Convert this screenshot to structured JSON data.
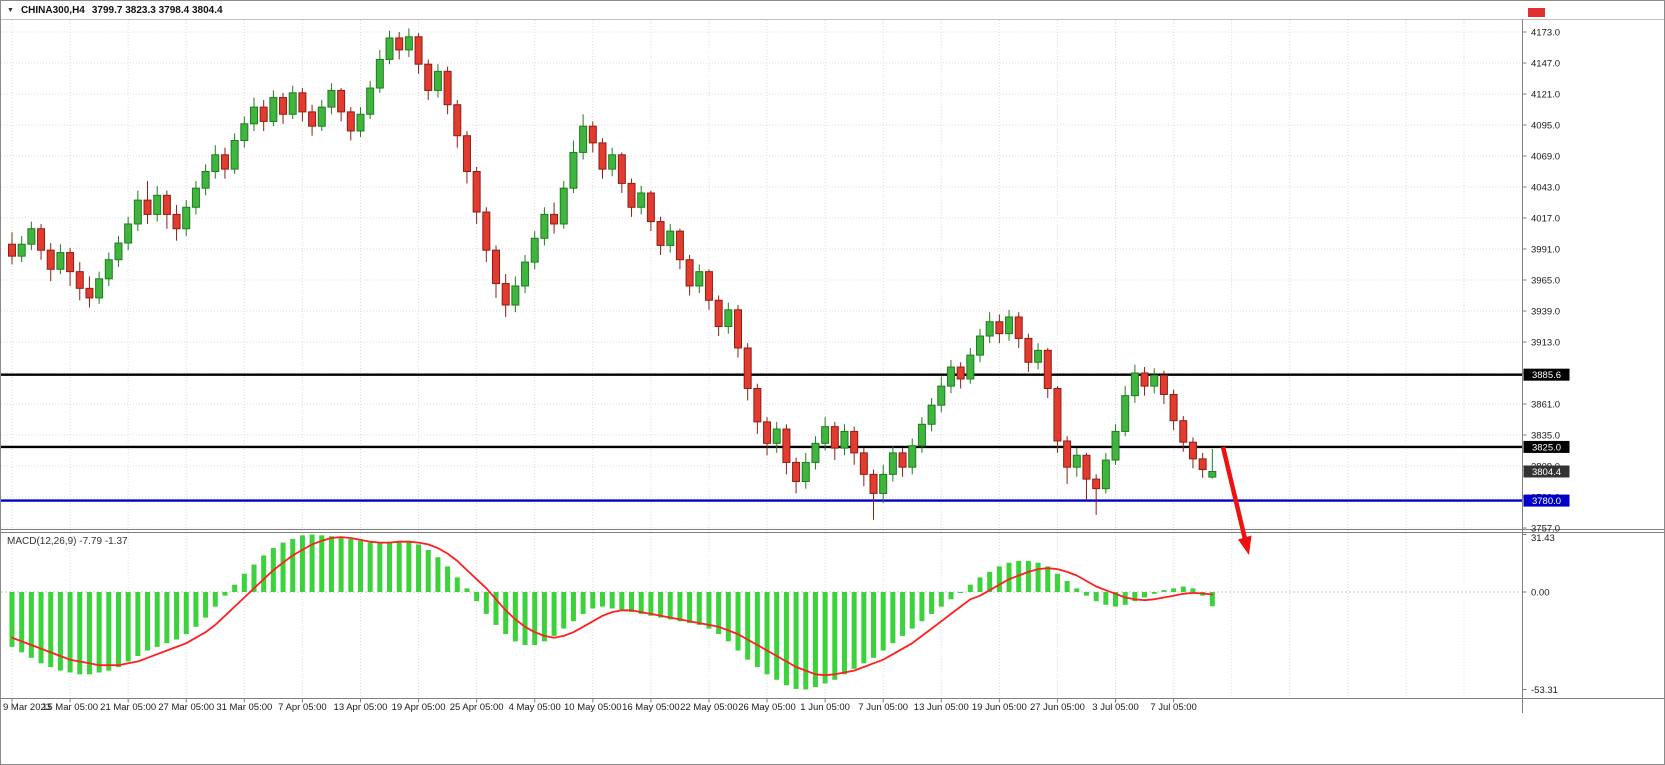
{
  "window": {
    "symbol_label": "CHINA300,H4",
    "ohlc_values": "3799.7 3823.3 3798.4 3804.4",
    "dropdown_icon": "▼"
  },
  "colors": {
    "background": "#ffffff",
    "grid": "#dcdcdc",
    "separator": "#808080",
    "axis_text": "#1a1a1a",
    "bull_fill": "#3fb53f",
    "bull_stroke": "#1e7d1e",
    "bear_fill": "#e23b30",
    "bear_stroke": "#8f1d14",
    "level_black": "#000000",
    "level_blue": "#0000c8",
    "badge_black": "#000000",
    "badge_blue": "#0000c8",
    "badge_current": "#333333",
    "macd_histogram": "#3bd23b",
    "macd_signal": "#ff1f1f",
    "arrow": "#ee1111",
    "alert_marker": "#e03030"
  },
  "chart_data": {
    "type": "candlestick_with_macd",
    "symbol": "CHINA300",
    "timeframe": "H4",
    "price_panel": {
      "y_ticks": [
        "4173.0",
        "4147.0",
        "4121.0",
        "4095.0",
        "4069.0",
        "4043.0",
        "4017.0",
        "3991.0",
        "3965.0",
        "3939.0",
        "3913.0",
        "3887.0",
        "3861.0",
        "3835.0",
        "3809.0",
        "3783.0",
        "3757.0"
      ],
      "levels": [
        {
          "value": 3885.6,
          "label": "3885.6",
          "color_key": "level_black",
          "badge_key": "badge_black"
        },
        {
          "value": 3825.0,
          "label": "3825.0",
          "color_key": "level_black",
          "badge_key": "badge_black"
        },
        {
          "value": 3780.0,
          "label": "3780.0",
          "color_key": "level_blue",
          "badge_key": "badge_blue"
        }
      ],
      "current_price": {
        "value": 3804.4,
        "label": "3804.4"
      }
    },
    "x_axis": {
      "candles_per_label": 6,
      "labels": [
        "9 Mar 2023",
        "15 Mar 05:00",
        "21 Mar 05:00",
        "27 Mar 05:00",
        "31 Mar 05:00",
        "7 Apr 05:00",
        "13 Apr 05:00",
        "19 Apr 05:00",
        "25 Apr 05:00",
        "4 May 05:00",
        "10 May 05:00",
        "16 May 05:00",
        "22 May 05:00",
        "26 May 05:00",
        "1 Jun 05:00",
        "7 Jun 05:00",
        "13 Jun 05:00",
        "19 Jun 05:00",
        "27 Jun 05:00",
        "3 Jul 05:00",
        "7 Jul 05:00"
      ]
    },
    "candles_format": "[open, high, low, close]",
    "candles": [
      [
        3995,
        4005,
        3978,
        3985
      ],
      [
        3985,
        4002,
        3980,
        3995
      ],
      [
        3995,
        4014,
        3990,
        4008
      ],
      [
        4008,
        4012,
        3982,
        3990
      ],
      [
        3990,
        3996,
        3964,
        3974
      ],
      [
        3974,
        3995,
        3970,
        3988
      ],
      [
        3988,
        3992,
        3960,
        3972
      ],
      [
        3972,
        3980,
        3948,
        3958
      ],
      [
        3958,
        3968,
        3942,
        3950
      ],
      [
        3950,
        3972,
        3945,
        3966
      ],
      [
        3966,
        3988,
        3960,
        3982
      ],
      [
        3982,
        4002,
        3976,
        3996
      ],
      [
        3996,
        4018,
        3990,
        4012
      ],
      [
        4012,
        4040,
        4006,
        4032
      ],
      [
        4032,
        4048,
        4012,
        4020
      ],
      [
        4020,
        4044,
        4014,
        4036
      ],
      [
        4036,
        4040,
        4008,
        4020
      ],
      [
        4020,
        4028,
        3998,
        4008
      ],
      [
        4008,
        4032,
        4002,
        4026
      ],
      [
        4026,
        4048,
        4020,
        4042
      ],
      [
        4042,
        4062,
        4036,
        4056
      ],
      [
        4056,
        4078,
        4050,
        4070
      ],
      [
        4070,
        4076,
        4050,
        4058
      ],
      [
        4058,
        4088,
        4054,
        4082
      ],
      [
        4082,
        4102,
        4076,
        4096
      ],
      [
        4096,
        4118,
        4090,
        4110
      ],
      [
        4110,
        4116,
        4090,
        4098
      ],
      [
        4098,
        4124,
        4094,
        4118
      ],
      [
        4118,
        4122,
        4096,
        4104
      ],
      [
        4104,
        4128,
        4100,
        4122
      ],
      [
        4122,
        4126,
        4098,
        4106
      ],
      [
        4106,
        4112,
        4086,
        4094
      ],
      [
        4094,
        4116,
        4090,
        4110
      ],
      [
        4110,
        4130,
        4104,
        4124
      ],
      [
        4124,
        4126,
        4098,
        4106
      ],
      [
        4106,
        4110,
        4082,
        4090
      ],
      [
        4090,
        4110,
        4085,
        4104
      ],
      [
        4104,
        4132,
        4100,
        4126
      ],
      [
        4126,
        4158,
        4122,
        4150
      ],
      [
        4150,
        4174,
        4146,
        4168
      ],
      [
        4168,
        4173,
        4150,
        4158
      ],
      [
        4158,
        4176,
        4152,
        4169
      ],
      [
        4169,
        4172,
        4138,
        4146
      ],
      [
        4146,
        4150,
        4116,
        4124
      ],
      [
        4124,
        4146,
        4118,
        4140
      ],
      [
        4140,
        4144,
        4104,
        4112
      ],
      [
        4112,
        4116,
        4076,
        4086
      ],
      [
        4086,
        4090,
        4046,
        4056
      ],
      [
        4056,
        4060,
        4012,
        4022
      ],
      [
        4022,
        4026,
        3980,
        3990
      ],
      [
        3990,
        3994,
        3950,
        3962
      ],
      [
        3962,
        3970,
        3934,
        3944
      ],
      [
        3944,
        3968,
        3938,
        3960
      ],
      [
        3960,
        3986,
        3954,
        3980
      ],
      [
        3980,
        4006,
        3974,
        4000
      ],
      [
        4000,
        4026,
        3994,
        4020
      ],
      [
        4020,
        4030,
        4004,
        4012
      ],
      [
        4012,
        4048,
        4008,
        4042
      ],
      [
        4042,
        4082,
        4038,
        4072
      ],
      [
        4072,
        4104,
        4066,
        4094
      ],
      [
        4094,
        4098,
        4072,
        4080
      ],
      [
        4080,
        4084,
        4050,
        4058
      ],
      [
        4058,
        4076,
        4052,
        4070
      ],
      [
        4070,
        4072,
        4038,
        4046
      ],
      [
        4046,
        4050,
        4018,
        4026
      ],
      [
        4026,
        4044,
        4020,
        4038
      ],
      [
        4038,
        4040,
        4006,
        4014
      ],
      [
        4014,
        4018,
        3986,
        3994
      ],
      [
        3994,
        4012,
        3988,
        4006
      ],
      [
        4006,
        4008,
        3974,
        3982
      ],
      [
        3982,
        3986,
        3952,
        3960
      ],
      [
        3960,
        3978,
        3954,
        3972
      ],
      [
        3972,
        3974,
        3940,
        3948
      ],
      [
        3948,
        3952,
        3918,
        3926
      ],
      [
        3926,
        3946,
        3920,
        3940
      ],
      [
        3940,
        3944,
        3900,
        3908
      ],
      [
        3908,
        3912,
        3864,
        3874
      ],
      [
        3874,
        3878,
        3836,
        3846
      ],
      [
        3846,
        3850,
        3818,
        3828
      ],
      [
        3828,
        3846,
        3820,
        3840
      ],
      [
        3840,
        3844,
        3802,
        3812
      ],
      [
        3812,
        3816,
        3786,
        3796
      ],
      [
        3796,
        3820,
        3790,
        3812
      ],
      [
        3812,
        3834,
        3806,
        3828
      ],
      [
        3828,
        3850,
        3822,
        3842
      ],
      [
        3842,
        3846,
        3814,
        3824
      ],
      [
        3824,
        3844,
        3818,
        3838
      ],
      [
        3838,
        3842,
        3810,
        3820
      ],
      [
        3820,
        3824,
        3792,
        3802
      ],
      [
        3802,
        3806,
        3764,
        3786
      ],
      [
        3786,
        3810,
        3778,
        3802
      ],
      [
        3802,
        3826,
        3796,
        3820
      ],
      [
        3820,
        3824,
        3800,
        3808
      ],
      [
        3808,
        3832,
        3802,
        3826
      ],
      [
        3826,
        3850,
        3820,
        3844
      ],
      [
        3844,
        3866,
        3838,
        3860
      ],
      [
        3860,
        3884,
        3854,
        3876
      ],
      [
        3876,
        3898,
        3870,
        3892
      ],
      [
        3892,
        3896,
        3874,
        3882
      ],
      [
        3882,
        3908,
        3878,
        3902
      ],
      [
        3902,
        3924,
        3896,
        3918
      ],
      [
        3918,
        3938,
        3912,
        3930
      ],
      [
        3930,
        3936,
        3912,
        3920
      ],
      [
        3920,
        3940,
        3914,
        3934
      ],
      [
        3934,
        3938,
        3908,
        3916
      ],
      [
        3916,
        3920,
        3888,
        3896
      ],
      [
        3896,
        3912,
        3890,
        3906
      ],
      [
        3906,
        3908,
        3866,
        3874
      ],
      [
        3874,
        3876,
        3820,
        3830
      ],
      [
        3830,
        3834,
        3794,
        3808
      ],
      [
        3808,
        3824,
        3800,
        3818
      ],
      [
        3818,
        3820,
        3780,
        3798
      ],
      [
        3798,
        3802,
        3768,
        3790
      ],
      [
        3790,
        3820,
        3786,
        3814
      ],
      [
        3814,
        3844,
        3810,
        3838
      ],
      [
        3838,
        3876,
        3834,
        3868
      ],
      [
        3868,
        3894,
        3862,
        3887
      ],
      [
        3887,
        3892,
        3868,
        3876
      ],
      [
        3876,
        3891,
        3870,
        3885
      ],
      [
        3885,
        3889,
        3861,
        3869
      ],
      [
        3869,
        3873,
        3839,
        3847
      ],
      [
        3847,
        3851,
        3821,
        3829
      ],
      [
        3829,
        3833,
        3807,
        3815
      ],
      [
        3815,
        3820,
        3799,
        3806
      ],
      [
        3799.7,
        3823.3,
        3798.4,
        3804.4
      ]
    ],
    "macd": {
      "label": "MACD(12,26,9)",
      "main_value": "-7.79",
      "signal_value": "-1.37",
      "y_ticks": [
        "31.43",
        "0.00",
        "-53.31"
      ],
      "histogram": [
        -30,
        -33,
        -36,
        -39,
        -41,
        -43,
        -44,
        -45,
        -45,
        -44,
        -43,
        -41,
        -38,
        -35,
        -32,
        -30,
        -28,
        -26,
        -23,
        -19,
        -14,
        -8,
        -2,
        4,
        10,
        15,
        20,
        24,
        27,
        29,
        31,
        31.4,
        31,
        30.5,
        30,
        29,
        28,
        27,
        27,
        27.5,
        28,
        28,
        26,
        23,
        19,
        14,
        8,
        2,
        -5,
        -12,
        -18,
        -23,
        -27,
        -29,
        -29,
        -27,
        -24,
        -20,
        -16,
        -12,
        -9,
        -8,
        -9,
        -10,
        -11,
        -12,
        -13,
        -14,
        -15,
        -16,
        -17,
        -18,
        -20,
        -23,
        -27,
        -32,
        -37,
        -41,
        -45,
        -48,
        -51,
        -53,
        -53.3,
        -52,
        -50,
        -48,
        -45,
        -42,
        -39,
        -36,
        -32,
        -28,
        -24,
        -20,
        -16,
        -12,
        -8,
        -4,
        0,
        4,
        8,
        11,
        14,
        16,
        17,
        17,
        16,
        14,
        10,
        6,
        2,
        -2,
        -5,
        -7,
        -8,
        -7,
        -5,
        -3,
        -1,
        1,
        2,
        3,
        2,
        -2,
        -7.79
      ],
      "signal": [
        -25,
        -27,
        -29,
        -31,
        -33,
        -35,
        -37,
        -38,
        -39,
        -40,
        -40,
        -40,
        -39,
        -38,
        -36,
        -34,
        -32,
        -30,
        -28,
        -25,
        -22,
        -18,
        -13,
        -8,
        -3,
        2,
        7,
        12,
        16,
        20,
        23,
        26,
        28,
        29.5,
        30,
        29.5,
        28.5,
        27.5,
        27,
        27,
        27.5,
        27.5,
        27,
        26,
        24,
        21,
        17,
        12,
        7,
        2,
        -4,
        -10,
        -15,
        -19,
        -22,
        -24,
        -25,
        -24,
        -22,
        -19,
        -16,
        -13,
        -11,
        -10,
        -10,
        -11,
        -12,
        -13,
        -14,
        -15,
        -16,
        -17,
        -18,
        -19,
        -21,
        -23,
        -26,
        -29,
        -32,
        -35,
        -38,
        -41,
        -43,
        -45,
        -45.5,
        -45,
        -44,
        -43,
        -41,
        -39,
        -37,
        -34,
        -31,
        -28,
        -24,
        -20,
        -16,
        -12,
        -8,
        -4,
        -2,
        1,
        4,
        7,
        9,
        11,
        12.5,
        13,
        12.5,
        11,
        9,
        6,
        3,
        1,
        -1,
        -3,
        -4,
        -4.5,
        -4,
        -3,
        -2,
        -1,
        -0.5,
        -0.8,
        -1.37
      ]
    },
    "annotation": {
      "type": "arrow-down",
      "color_key": "arrow"
    }
  }
}
